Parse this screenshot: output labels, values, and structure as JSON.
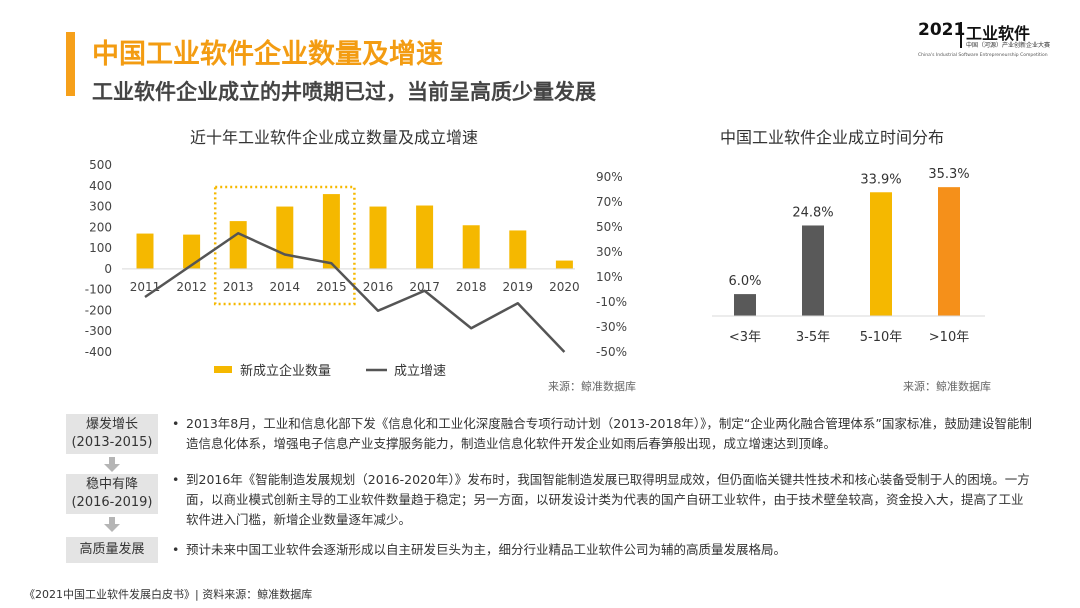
{
  "header": {
    "title": "中国工业软件企业数量及增速",
    "subtitle": "工业软件企业成立的井喷期已过，当前呈高质少量发展"
  },
  "logo": {
    "year": "2021",
    "name": "工业软件",
    "subtitle": "中国（河源）产业创新企业大赛",
    "english": "China's Industrial Software Entrepreneurship Competition"
  },
  "chart_data": [
    {
      "type": "bar",
      "title": "近十年工业软件企业成立数量及成立增速",
      "categories": [
        "2011",
        "2012",
        "2013",
        "2014",
        "2015",
        "2016",
        "2017",
        "2018",
        "2019",
        "2020"
      ],
      "series": [
        {
          "name": "新成立企业数量",
          "type": "bar",
          "axis": "left",
          "color": "#f5b800",
          "values": [
            170,
            165,
            230,
            300,
            360,
            300,
            305,
            210,
            185,
            40
          ]
        },
        {
          "name": "成立增速",
          "type": "line",
          "axis": "right",
          "color": "#555555",
          "values": [
            -6,
            null,
            45,
            28,
            21,
            -17,
            -1,
            -31,
            -11,
            -50
          ]
        }
      ],
      "yleft": {
        "min": -400,
        "max": 500,
        "step": 100,
        "ticks": [
          "500",
          "400",
          "300",
          "200",
          "100",
          "0",
          "-100",
          "-200",
          "-300",
          "-400"
        ]
      },
      "yright": {
        "min": -50,
        "max": 90,
        "step": 20,
        "ticks": [
          "90%",
          "70%",
          "50%",
          "30%",
          "10%",
          "-10%",
          "-30%",
          "-50%"
        ]
      },
      "highlight": {
        "from": "2013",
        "to": "2015",
        "color": "#f5b800",
        "style": "dotted"
      },
      "legend": {
        "position": "bottom"
      },
      "source": "来源：鲸准数据库"
    },
    {
      "type": "bar",
      "title": "中国工业软件企业成立时间分布",
      "categories": [
        "<3年",
        "3-5年",
        "5-10年",
        ">10年"
      ],
      "values": [
        6.0,
        24.8,
        33.9,
        35.3
      ],
      "labels": [
        "6.0%",
        "24.8%",
        "33.9%",
        "35.3%"
      ],
      "colors": [
        "#595959",
        "#595959",
        "#f5b800",
        "#f5901a"
      ],
      "ylim": [
        0,
        40
      ],
      "source": "来源：鲸准数据库"
    }
  ],
  "stages": [
    {
      "name": "爆发增长",
      "period": "(2013-2015)",
      "text": "2013年8月，工业和信息化部下发《信息化和工业化深度融合专项行动计划（2013-2018年）》，制定“企业两化融合管理体系”国家标准，鼓励建设智能制造信息化体系，增强电子信息产业支撑服务能力，制造业信息化软件开发企业如雨后春笋般出现，成立增速达到顶峰。"
    },
    {
      "name": "稳中有降",
      "period": "(2016-2019)",
      "text": "到2016年《智能制造发展规划（2016-2020年）》发布时，我国智能制造发展已取得明显成效，但仍面临关键共性技术和核心装备受制于人的困境。一方面，以商业模式创新主导的工业软件数量趋于稳定；另一方面，以研发设计类为代表的国产自研工业软件，由于技术壁垒较高，资金投入大，提高了工业软件进入门槛，新增企业数量逐年减少。"
    },
    {
      "name": "高质量发展",
      "period": "",
      "text": "预计未来中国工业软件会逐渐形成以自主研发巨头为主，细分行业精品工业软件公司为辅的高质量发展格局。"
    }
  ],
  "footer": "《2021中国工业软件发展白皮书》| 资料来源：鲸准数据库"
}
